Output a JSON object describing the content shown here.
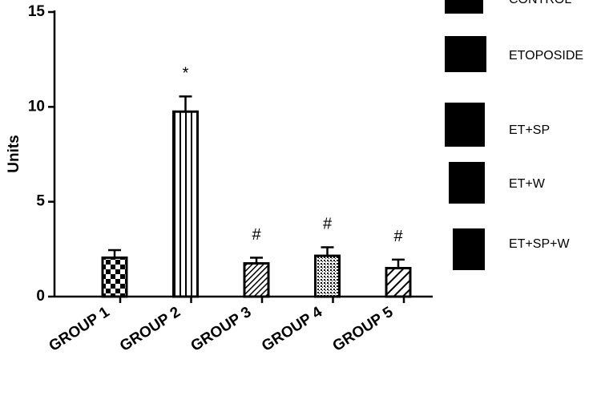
{
  "chart_data": {
    "type": "bar",
    "y_label": "Units",
    "categories": [
      "GROUP 1",
      "GROUP 2",
      "GROUP 3",
      "GROUP 4",
      "GROUP 5"
    ],
    "values": [
      2.05,
      9.75,
      1.75,
      2.15,
      1.5
    ],
    "errors": [
      0.4,
      0.8,
      0.3,
      0.45,
      0.45
    ],
    "annotations": [
      null,
      "*",
      "#",
      "#",
      "#"
    ],
    "legend": [
      "CONTROL",
      "ETOPOSIDE",
      "ET+SP",
      "ET+W",
      "ET+SP+W"
    ],
    "color": "#000000",
    "ylim": [
      0,
      15
    ],
    "yticks": [
      0,
      5,
      10,
      15
    ]
  }
}
